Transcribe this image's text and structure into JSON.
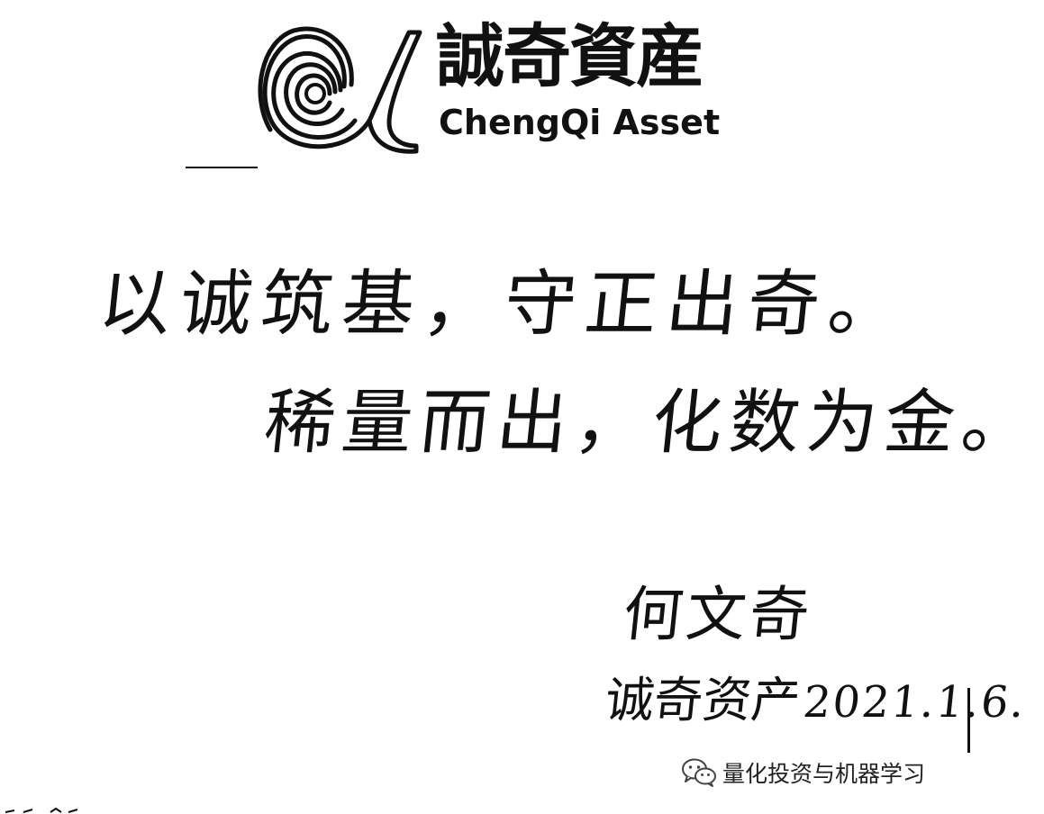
{
  "logo": {
    "name_cn": "誠奇資産",
    "name_en": "ChengQi Asset"
  },
  "motto": {
    "line1": "以诚筑基，守正出奇。",
    "line2": "稀量而出，化数为金。"
  },
  "signature": {
    "name": "何文奇",
    "org": "诚奇资产",
    "date": "2021.1.6."
  },
  "watermark": {
    "icon": "wechat-icon",
    "text": "量化投资与机器学习"
  },
  "colors": {
    "ink": "#111111",
    "background": "#ffffff"
  }
}
